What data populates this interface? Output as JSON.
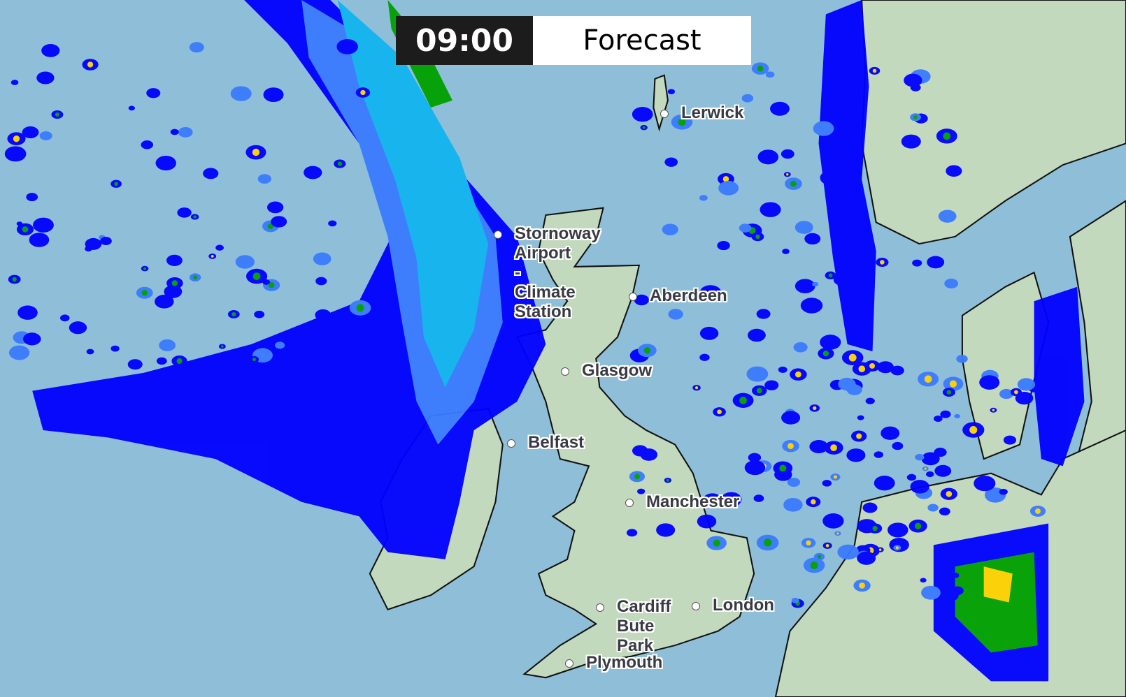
{
  "header": {
    "time": "09:00",
    "mode": "Forecast"
  },
  "colors": {
    "sea": "#8fbfd8",
    "land": "#c3d9bd",
    "rain_light": "#0000ff",
    "rain_mid": "#3a7bff",
    "rain_cyan": "#11b4f0",
    "rain_green": "#00a000",
    "rain_yellow": "#ffd200",
    "rain_heavy": "#ff6600"
  },
  "cities": [
    {
      "name": "Lerwick",
      "lines": [
        "Lerwick"
      ]
    },
    {
      "name": "Stornoway Airport - Climate Station",
      "lines": [
        "Stornoway",
        "Airport",
        "-",
        "Climate",
        "Station"
      ]
    },
    {
      "name": "Aberdeen",
      "lines": [
        "Aberdeen"
      ]
    },
    {
      "name": "Glasgow",
      "lines": [
        "Glasgow"
      ]
    },
    {
      "name": "Belfast",
      "lines": [
        "Belfast"
      ]
    },
    {
      "name": "Manchester",
      "lines": [
        "Manchester"
      ]
    },
    {
      "name": "Cardiff Bute Park",
      "lines": [
        "Cardiff",
        "Bute",
        "Park"
      ]
    },
    {
      "name": "London",
      "lines": [
        "London"
      ]
    },
    {
      "name": "Plymouth",
      "lines": [
        "Plymouth"
      ]
    }
  ]
}
